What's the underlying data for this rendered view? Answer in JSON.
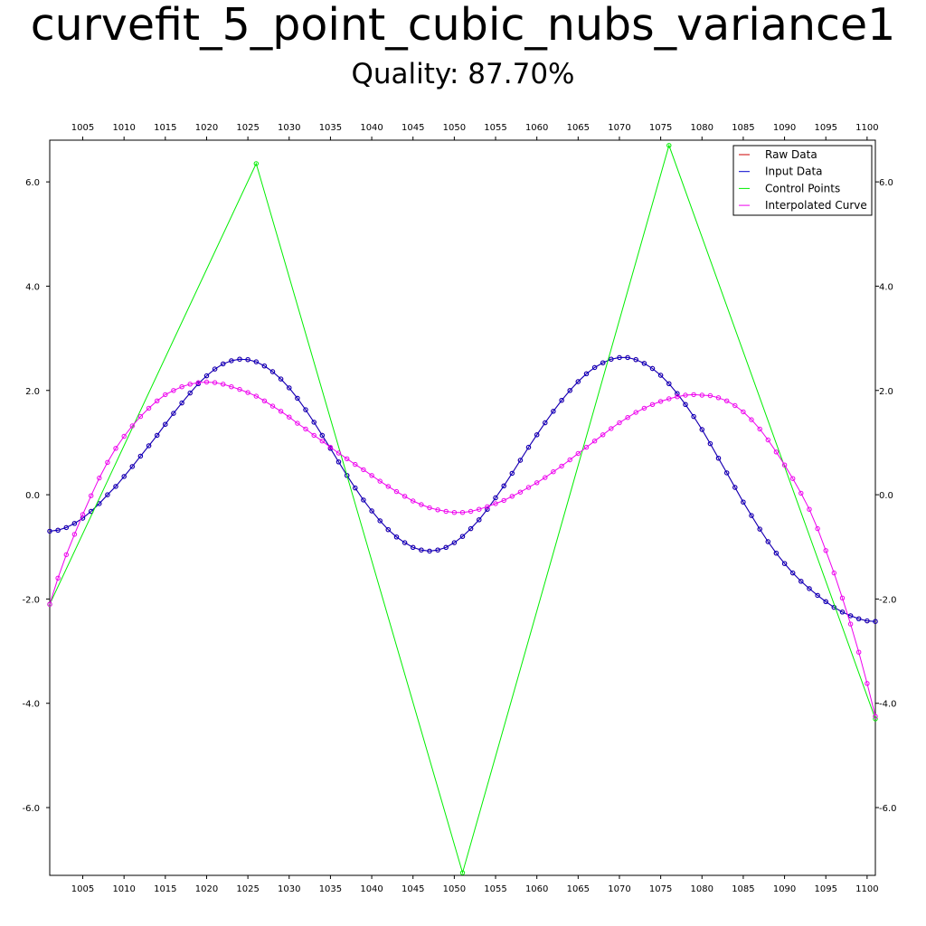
{
  "title": "curvefit_5_point_cubic_nubs_variance1",
  "subtitle": "Quality: 87.70%",
  "chart_data": {
    "type": "line",
    "xlim": [
      1001,
      1101
    ],
    "ylim": [
      -7.3,
      6.8
    ],
    "x_ticks": [
      1005,
      1010,
      1015,
      1020,
      1025,
      1030,
      1035,
      1040,
      1045,
      1050,
      1055,
      1060,
      1065,
      1070,
      1075,
      1080,
      1085,
      1090,
      1095,
      1100
    ],
    "y_ticks": [
      -6.0,
      -4.0,
      -2.0,
      0.0,
      2.0,
      4.0,
      6.0
    ],
    "grid": false,
    "legend_position": "top-right",
    "legend": [
      {
        "label": "Raw Data",
        "color": "#cc0000"
      },
      {
        "label": "Input Data",
        "color": "#0000cc"
      },
      {
        "label": "Control Points",
        "color": "#00ee00"
      },
      {
        "label": "Interpolated Curve",
        "color": "#ee00ee"
      }
    ],
    "series": [
      {
        "name": "Raw Data",
        "color": "#cc0000",
        "markers": true,
        "x": [
          1001,
          1002,
          1003,
          1004,
          1005,
          1006,
          1007,
          1008,
          1009,
          1010,
          1011,
          1012,
          1013,
          1014,
          1015,
          1016,
          1017,
          1018,
          1019,
          1020,
          1021,
          1022,
          1023,
          1024,
          1025,
          1026,
          1027,
          1028,
          1029,
          1030,
          1031,
          1032,
          1033,
          1034,
          1035,
          1036,
          1037,
          1038,
          1039,
          1040,
          1041,
          1042,
          1043,
          1044,
          1045,
          1046,
          1047,
          1048,
          1049,
          1050,
          1051,
          1052,
          1053,
          1054,
          1055,
          1056,
          1057,
          1058,
          1059,
          1060,
          1061,
          1062,
          1063,
          1064,
          1065,
          1066,
          1067,
          1068,
          1069,
          1070,
          1071,
          1072,
          1073,
          1074,
          1075,
          1076,
          1077,
          1078,
          1079,
          1080,
          1081,
          1082,
          1083,
          1084,
          1085,
          1086,
          1087,
          1088,
          1089,
          1090,
          1091,
          1092,
          1093,
          1094,
          1095,
          1096,
          1097,
          1098,
          1099,
          1100,
          1101
        ],
        "y": [
          -0.7,
          -0.68,
          -0.63,
          -0.55,
          -0.45,
          -0.32,
          -0.17,
          0.0,
          0.16,
          0.35,
          0.54,
          0.74,
          0.94,
          1.14,
          1.35,
          1.56,
          1.76,
          1.95,
          2.13,
          2.28,
          2.41,
          2.51,
          2.57,
          2.6,
          2.59,
          2.55,
          2.47,
          2.36,
          2.22,
          2.05,
          1.85,
          1.63,
          1.39,
          1.14,
          0.89,
          0.63,
          0.37,
          0.13,
          -0.1,
          -0.31,
          -0.5,
          -0.67,
          -0.81,
          -0.92,
          -1.01,
          -1.06,
          -1.08,
          -1.06,
          -1.01,
          -0.92,
          -0.8,
          -0.65,
          -0.48,
          -0.28,
          -0.06,
          0.17,
          0.41,
          0.66,
          0.91,
          1.15,
          1.38,
          1.6,
          1.81,
          2.0,
          2.17,
          2.32,
          2.44,
          2.53,
          2.6,
          2.63,
          2.63,
          2.59,
          2.52,
          2.42,
          2.29,
          2.13,
          1.94,
          1.73,
          1.5,
          1.25,
          0.98,
          0.7,
          0.42,
          0.14,
          -0.14,
          -0.4,
          -0.66,
          -0.9,
          -1.12,
          -1.32,
          -1.5,
          -1.66,
          -1.8,
          -1.93,
          -2.05,
          -2.16,
          -2.25,
          -2.32,
          -2.38,
          -2.42,
          -2.43
        ]
      },
      {
        "name": "Input Data",
        "color": "#0000cc",
        "markers": true,
        "x": [
          1001,
          1002,
          1003,
          1004,
          1005,
          1006,
          1007,
          1008,
          1009,
          1010,
          1011,
          1012,
          1013,
          1014,
          1015,
          1016,
          1017,
          1018,
          1019,
          1020,
          1021,
          1022,
          1023,
          1024,
          1025,
          1026,
          1027,
          1028,
          1029,
          1030,
          1031,
          1032,
          1033,
          1034,
          1035,
          1036,
          1037,
          1038,
          1039,
          1040,
          1041,
          1042,
          1043,
          1044,
          1045,
          1046,
          1047,
          1048,
          1049,
          1050,
          1051,
          1052,
          1053,
          1054,
          1055,
          1056,
          1057,
          1058,
          1059,
          1060,
          1061,
          1062,
          1063,
          1064,
          1065,
          1066,
          1067,
          1068,
          1069,
          1070,
          1071,
          1072,
          1073,
          1074,
          1075,
          1076,
          1077,
          1078,
          1079,
          1080,
          1081,
          1082,
          1083,
          1084,
          1085,
          1086,
          1087,
          1088,
          1089,
          1090,
          1091,
          1092,
          1093,
          1094,
          1095,
          1096,
          1097,
          1098,
          1099,
          1100,
          1101
        ],
        "y": [
          -0.7,
          -0.68,
          -0.63,
          -0.55,
          -0.45,
          -0.32,
          -0.17,
          0.0,
          0.16,
          0.35,
          0.54,
          0.74,
          0.94,
          1.14,
          1.35,
          1.56,
          1.76,
          1.95,
          2.13,
          2.28,
          2.41,
          2.51,
          2.57,
          2.6,
          2.59,
          2.55,
          2.47,
          2.36,
          2.22,
          2.05,
          1.85,
          1.63,
          1.39,
          1.14,
          0.89,
          0.63,
          0.37,
          0.13,
          -0.1,
          -0.31,
          -0.5,
          -0.67,
          -0.81,
          -0.92,
          -1.01,
          -1.06,
          -1.08,
          -1.06,
          -1.01,
          -0.92,
          -0.8,
          -0.65,
          -0.48,
          -0.28,
          -0.06,
          0.17,
          0.41,
          0.66,
          0.91,
          1.15,
          1.38,
          1.6,
          1.81,
          2.0,
          2.17,
          2.32,
          2.44,
          2.53,
          2.6,
          2.63,
          2.63,
          2.59,
          2.52,
          2.42,
          2.29,
          2.13,
          1.94,
          1.73,
          1.5,
          1.25,
          0.98,
          0.7,
          0.42,
          0.14,
          -0.14,
          -0.4,
          -0.66,
          -0.9,
          -1.12,
          -1.32,
          -1.5,
          -1.66,
          -1.8,
          -1.93,
          -2.05,
          -2.16,
          -2.25,
          -2.32,
          -2.38,
          -2.42,
          -2.43
        ]
      },
      {
        "name": "Control Points",
        "color": "#00ee00",
        "markers": true,
        "x": [
          1001,
          1026,
          1051,
          1076,
          1101
        ],
        "y": [
          -2.1,
          6.35,
          -7.25,
          6.7,
          -4.3
        ]
      },
      {
        "name": "Interpolated Curve",
        "color": "#ee00ee",
        "markers": true,
        "x": [
          1001,
          1002,
          1003,
          1004,
          1005,
          1006,
          1007,
          1008,
          1009,
          1010,
          1011,
          1012,
          1013,
          1014,
          1015,
          1016,
          1017,
          1018,
          1019,
          1020,
          1021,
          1022,
          1023,
          1024,
          1025,
          1026,
          1027,
          1028,
          1029,
          1030,
          1031,
          1032,
          1033,
          1034,
          1035,
          1036,
          1037,
          1038,
          1039,
          1040,
          1041,
          1042,
          1043,
          1044,
          1045,
          1046,
          1047,
          1048,
          1049,
          1050,
          1051,
          1052,
          1053,
          1054,
          1055,
          1056,
          1057,
          1058,
          1059,
          1060,
          1061,
          1062,
          1063,
          1064,
          1065,
          1066,
          1067,
          1068,
          1069,
          1070,
          1071,
          1072,
          1073,
          1074,
          1075,
          1076,
          1077,
          1078,
          1079,
          1080,
          1081,
          1082,
          1083,
          1084,
          1085,
          1086,
          1087,
          1088,
          1089,
          1090,
          1091,
          1092,
          1093,
          1094,
          1095,
          1096,
          1097,
          1098,
          1099,
          1100,
          1101
        ],
        "y": [
          -2.1,
          -1.6,
          -1.15,
          -0.76,
          -0.38,
          -0.02,
          0.32,
          0.62,
          0.89,
          1.12,
          1.32,
          1.5,
          1.66,
          1.8,
          1.92,
          2.0,
          2.07,
          2.12,
          2.15,
          2.16,
          2.15,
          2.12,
          2.07,
          2.02,
          1.96,
          1.89,
          1.8,
          1.7,
          1.6,
          1.49,
          1.37,
          1.26,
          1.14,
          1.03,
          0.91,
          0.8,
          0.69,
          0.58,
          0.48,
          0.37,
          0.26,
          0.16,
          0.06,
          -0.03,
          -0.12,
          -0.19,
          -0.25,
          -0.29,
          -0.32,
          -0.34,
          -0.34,
          -0.32,
          -0.28,
          -0.23,
          -0.17,
          -0.11,
          -0.03,
          0.05,
          0.14,
          0.23,
          0.33,
          0.44,
          0.55,
          0.67,
          0.79,
          0.91,
          1.03,
          1.15,
          1.27,
          1.38,
          1.48,
          1.58,
          1.66,
          1.73,
          1.79,
          1.84,
          1.88,
          1.91,
          1.92,
          1.91,
          1.9,
          1.86,
          1.8,
          1.71,
          1.59,
          1.44,
          1.26,
          1.05,
          0.82,
          0.57,
          0.31,
          0.03,
          -0.28,
          -0.65,
          -1.07,
          -1.5,
          -1.98,
          -2.48,
          -3.02,
          -3.62,
          -4.25
        ]
      }
    ]
  }
}
